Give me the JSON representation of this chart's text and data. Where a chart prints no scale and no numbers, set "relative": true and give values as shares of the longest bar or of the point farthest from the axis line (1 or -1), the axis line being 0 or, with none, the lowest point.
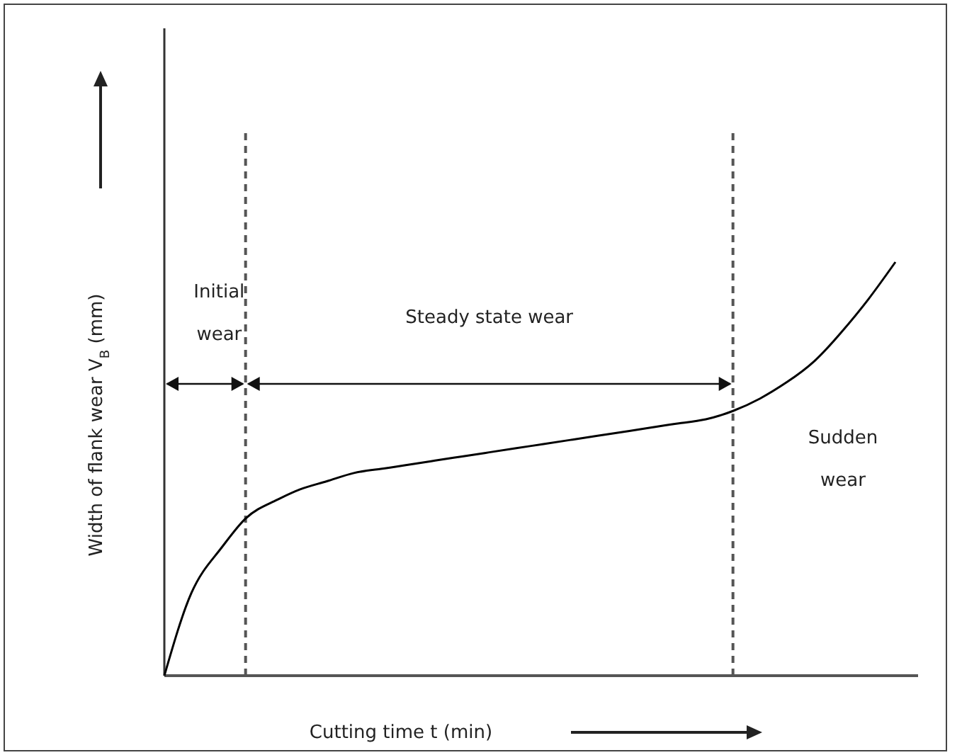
{
  "chart_data": {
    "type": "line",
    "relative": true,
    "xlabel": "Cutting time t (min)",
    "ylabel": "Width of flank wear V$_{B}$ (mm)",
    "categories": [
      null,
      null,
      null,
      null,
      null,
      null,
      null,
      null,
      null,
      null,
      null,
      null,
      null,
      null,
      null,
      null,
      null,
      null,
      null,
      null,
      null,
      null,
      null,
      null,
      null,
      null,
      null,
      null
    ],
    "series": [
      {
        "color": "#000000",
        "values": [
          0,
          0.2,
          0.3,
          0.38,
          0.42,
          0.45,
          0.47,
          0.49,
          0.5,
          0.51,
          0.52,
          0.53,
          0.54,
          0.55,
          0.56,
          0.57,
          0.58,
          0.59,
          0.6,
          0.61,
          0.62,
          0.64,
          0.67,
          0.71,
          0.76,
          0.83,
          0.91,
          1
        ]
      }
    ],
    "annotations": [
      "Initial wear",
      "Steady state wear",
      "Sudden wear"
    ],
    "line_style": "solid"
  }
}
